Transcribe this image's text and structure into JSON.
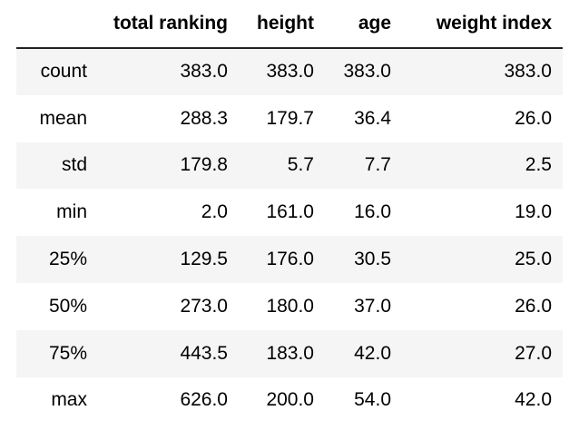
{
  "table": {
    "columns": [
      "",
      "total ranking",
      "height",
      "age",
      "weight index"
    ],
    "rows": [
      {
        "index": "count",
        "values": [
          "383.0",
          "383.0",
          "383.0",
          "383.0"
        ]
      },
      {
        "index": "mean",
        "values": [
          "288.3",
          "179.7",
          "36.4",
          "26.0"
        ]
      },
      {
        "index": "std",
        "values": [
          "179.8",
          "5.7",
          "7.7",
          "2.5"
        ]
      },
      {
        "index": "min",
        "values": [
          "2.0",
          "161.0",
          "16.0",
          "19.0"
        ]
      },
      {
        "index": "25%",
        "values": [
          "129.5",
          "176.0",
          "30.5",
          "25.0"
        ]
      },
      {
        "index": "50%",
        "values": [
          "273.0",
          "180.0",
          "37.0",
          "26.0"
        ]
      },
      {
        "index": "75%",
        "values": [
          "443.5",
          "183.0",
          "42.0",
          "27.0"
        ]
      },
      {
        "index": "max",
        "values": [
          "626.0",
          "200.0",
          "54.0",
          "42.0"
        ]
      }
    ]
  }
}
